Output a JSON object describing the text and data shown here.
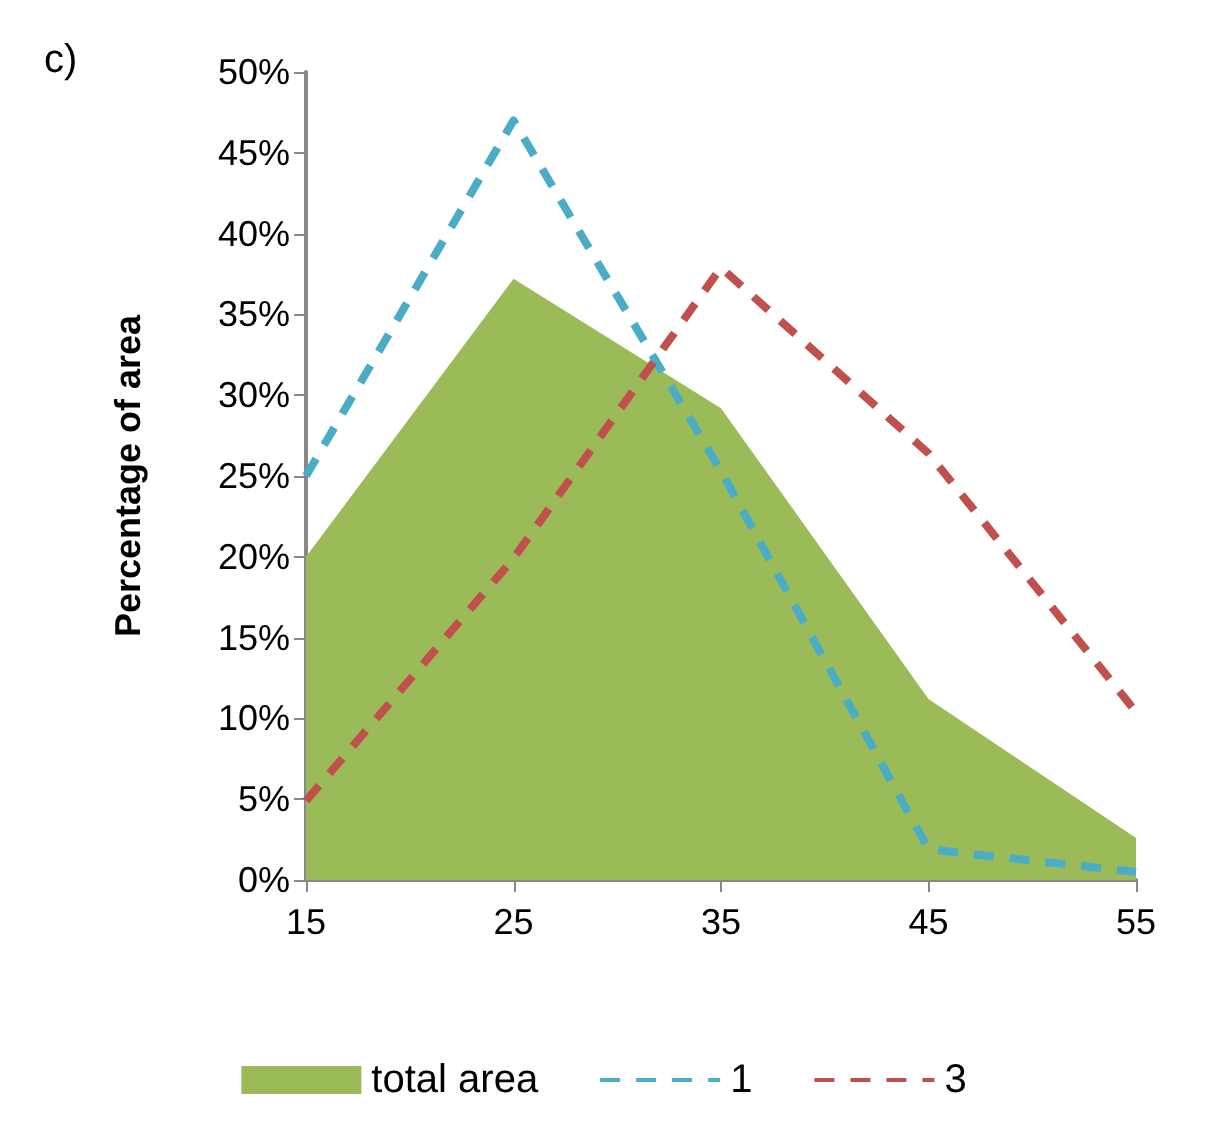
{
  "chart_data": {
    "type": "area",
    "annotations": [
      "c)"
    ],
    "ylabel": "Percentage of area",
    "categories": [
      "15",
      "25",
      "35",
      "45",
      "55"
    ],
    "series": [
      {
        "name": "total area",
        "type": "area",
        "color": "#9bbb59",
        "values": [
          20,
          37.2,
          29.2,
          11.2,
          2.6
        ]
      },
      {
        "name": "1",
        "type": "line",
        "color": "#4bacc6",
        "line_style": "dashed",
        "values": [
          25,
          47,
          25.3,
          1.9,
          0.5
        ]
      },
      {
        "name": "3",
        "type": "line",
        "color": "#c0504d",
        "line_style": "dashed",
        "values": [
          4.9,
          19.9,
          37.9,
          26.4,
          10.4
        ]
      }
    ],
    "ylim": [
      0,
      50
    ],
    "yticks": [
      {
        "value": 0,
        "label": "0%"
      },
      {
        "value": 5,
        "label": "5%"
      },
      {
        "value": 10,
        "label": "10%"
      },
      {
        "value": 15,
        "label": "15%"
      },
      {
        "value": 20,
        "label": "20%"
      },
      {
        "value": 25,
        "label": "25%"
      },
      {
        "value": 30,
        "label": "30%"
      },
      {
        "value": 35,
        "label": "35%"
      },
      {
        "value": 40,
        "label": "40%"
      },
      {
        "value": 45,
        "label": "45%"
      },
      {
        "value": 50,
        "label": "50%"
      }
    ],
    "grid": false,
    "legend": "bottom",
    "marker": "none"
  }
}
